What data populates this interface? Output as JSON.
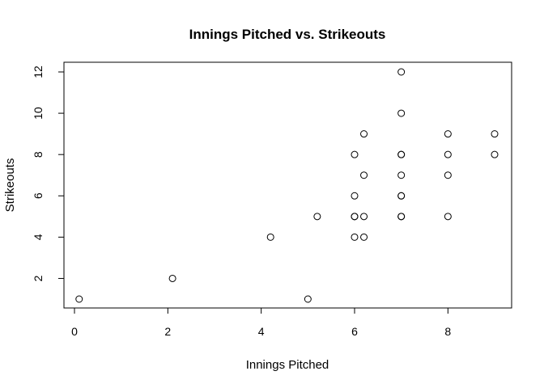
{
  "chart_data": {
    "type": "scatter",
    "title": "Innings Pitched vs. Strikeouts",
    "xlabel": "Innings Pitched",
    "ylabel": "Strikeouts",
    "xlim": [
      0,
      9
    ],
    "ylim": [
      1,
      12
    ],
    "x_ticks": [
      0,
      2,
      4,
      6,
      8
    ],
    "y_ticks": [
      2,
      4,
      6,
      8,
      10,
      12
    ],
    "grid": false,
    "legend": "none",
    "points": [
      {
        "x": 0.1,
        "y": 1
      },
      {
        "x": 2.1,
        "y": 2
      },
      {
        "x": 4.2,
        "y": 4
      },
      {
        "x": 5.0,
        "y": 1
      },
      {
        "x": 5.2,
        "y": 5
      },
      {
        "x": 6.0,
        "y": 4
      },
      {
        "x": 6.0,
        "y": 5
      },
      {
        "x": 6.0,
        "y": 5
      },
      {
        "x": 6.0,
        "y": 6
      },
      {
        "x": 6.0,
        "y": 8
      },
      {
        "x": 6.2,
        "y": 4
      },
      {
        "x": 6.2,
        "y": 5
      },
      {
        "x": 6.2,
        "y": 7
      },
      {
        "x": 6.2,
        "y": 9
      },
      {
        "x": 7.0,
        "y": 5
      },
      {
        "x": 7.0,
        "y": 5
      },
      {
        "x": 7.0,
        "y": 6
      },
      {
        "x": 7.0,
        "y": 6
      },
      {
        "x": 7.0,
        "y": 7
      },
      {
        "x": 7.0,
        "y": 8
      },
      {
        "x": 7.0,
        "y": 8
      },
      {
        "x": 7.0,
        "y": 10
      },
      {
        "x": 7.0,
        "y": 12
      },
      {
        "x": 8.0,
        "y": 5
      },
      {
        "x": 8.0,
        "y": 7
      },
      {
        "x": 8.0,
        "y": 8
      },
      {
        "x": 8.0,
        "y": 9
      },
      {
        "x": 9.0,
        "y": 8
      },
      {
        "x": 9.0,
        "y": 9
      }
    ]
  }
}
